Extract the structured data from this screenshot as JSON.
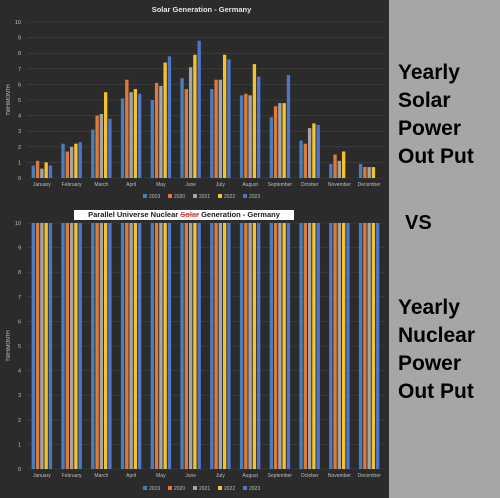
{
  "side_captions": {
    "solar": [
      "Yearly",
      "Solar",
      "Power",
      "Out Put"
    ],
    "vs": "VS",
    "nuclear": [
      "Yearly",
      "Nuclear",
      "Power",
      "Out Put"
    ]
  },
  "colors": {
    "2019": "#4a7ebb",
    "2020": "#e07a3c",
    "2021": "#a5a5a5",
    "2022": "#f2c232",
    "2023": "#4f74c9"
  },
  "chart_data": [
    {
      "type": "bar",
      "title": "Solar Generation - Germany",
      "xlabel": "",
      "ylabel": "TWH/MONTH",
      "ylim": [
        0,
        10
      ],
      "yticks": [
        0,
        1,
        2,
        3,
        4,
        5,
        6,
        7,
        8,
        9,
        10
      ],
      "grid": true,
      "legend": "bottom",
      "categories": [
        "January",
        "February",
        "March",
        "April",
        "May",
        "June",
        "July",
        "August",
        "September",
        "October",
        "November",
        "December"
      ],
      "series": [
        {
          "name": "2019",
          "values": [
            0.8,
            2.2,
            3.1,
            5.1,
            5.0,
            6.4,
            5.7,
            5.3,
            3.9,
            2.4,
            0.9,
            0.9
          ]
        },
        {
          "name": "2020",
          "values": [
            1.1,
            1.7,
            4.0,
            6.3,
            6.1,
            5.7,
            6.3,
            5.4,
            4.6,
            2.2,
            1.5,
            0.7
          ]
        },
        {
          "name": "2021",
          "values": [
            0.6,
            2.0,
            4.1,
            5.5,
            5.9,
            7.1,
            6.3,
            5.3,
            4.8,
            3.2,
            1.1,
            0.7
          ]
        },
        {
          "name": "2022",
          "values": [
            1.0,
            2.2,
            5.5,
            5.7,
            7.4,
            7.9,
            7.9,
            7.3,
            4.8,
            3.5,
            1.7,
            0.7
          ]
        },
        {
          "name": "2023",
          "values": [
            0.8,
            2.3,
            3.8,
            5.4,
            7.8,
            8.8,
            7.6,
            6.5,
            6.6,
            3.4,
            null,
            null
          ]
        }
      ]
    },
    {
      "type": "bar",
      "title_parts": [
        "Parallel Universe Nuclear ",
        "Solar",
        " Generation - Germany"
      ],
      "xlabel": "",
      "ylabel": "TWH/MONTH",
      "ylim": [
        0,
        10
      ],
      "yticks": [
        0,
        1,
        2,
        3,
        4,
        5,
        6,
        7,
        8,
        9,
        10
      ],
      "grid": true,
      "legend": "bottom",
      "categories": [
        "January",
        "February",
        "March",
        "April",
        "May",
        "June",
        "July",
        "August",
        "September",
        "October",
        "November",
        "December"
      ],
      "series": [
        {
          "name": "2019",
          "values": [
            16,
            16,
            16,
            16,
            16,
            16,
            16,
            16,
            16,
            16,
            16,
            16
          ]
        },
        {
          "name": "2020",
          "values": [
            16,
            16,
            16,
            16,
            16,
            16,
            16,
            16,
            16,
            16,
            16,
            16
          ]
        },
        {
          "name": "2021",
          "values": [
            16,
            16,
            16,
            16,
            16,
            16,
            16,
            16,
            16,
            16,
            16,
            16
          ]
        },
        {
          "name": "2022",
          "values": [
            16,
            16,
            16,
            16,
            16,
            16,
            16,
            16,
            16,
            16,
            16,
            16
          ]
        },
        {
          "name": "2023",
          "values": [
            16,
            16,
            16,
            16,
            16,
            16,
            16,
            16,
            16,
            16,
            16,
            16
          ]
        }
      ]
    }
  ]
}
